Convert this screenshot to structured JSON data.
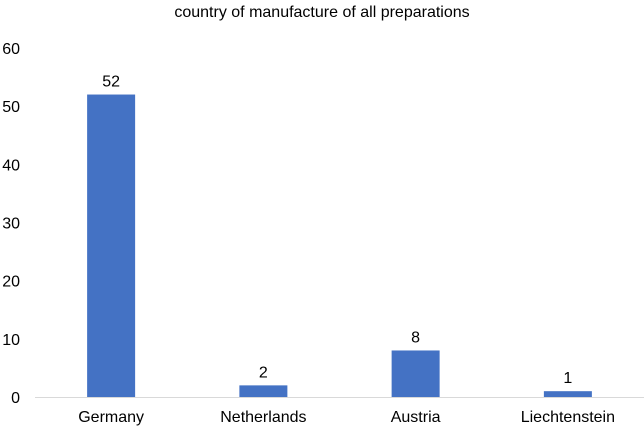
{
  "chart_data": {
    "type": "bar",
    "title": "country of manufacture of all preparations",
    "categories": [
      "Germany",
      "Netherlands",
      "Austria",
      "Liechtenstein"
    ],
    "values": [
      52,
      2,
      8,
      1
    ],
    "data_labels": [
      "52",
      "2",
      "8",
      "1"
    ],
    "xlabel": "",
    "ylabel": "",
    "ylim": [
      0,
      60
    ],
    "yticks": [
      0,
      10,
      20,
      30,
      40,
      50,
      60
    ],
    "grid": false,
    "legend": "none",
    "colors": {
      "bar": "#4472C4",
      "axis": "#D9D9D9",
      "text": "#000000"
    }
  }
}
